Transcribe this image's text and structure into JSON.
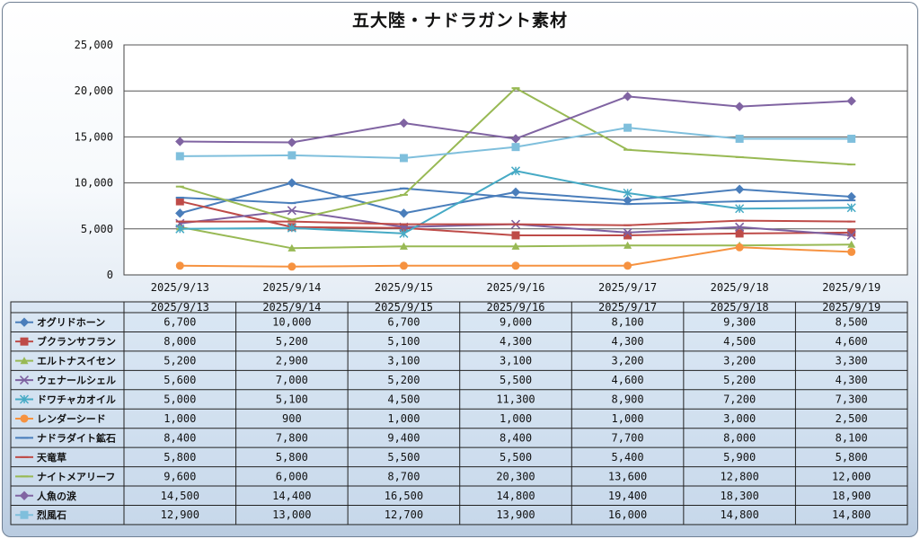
{
  "chart_data": {
    "type": "line",
    "title": "五大陸・ナドラガント素材",
    "x": [
      "2025/9/13",
      "2025/9/14",
      "2025/9/15",
      "2025/9/16",
      "2025/9/17",
      "2025/9/18",
      "2025/9/19"
    ],
    "ylim": [
      0,
      25000
    ],
    "yticks": [
      "0",
      "5,000",
      "10,000",
      "15,000",
      "20,000",
      "25,000"
    ],
    "grid": true,
    "legend": "data-table-below",
    "series": [
      {
        "name": "オグリドホーン",
        "color": "#4a7ebb",
        "marker": "diamond",
        "values": [
          6700,
          10000,
          6700,
          9000,
          8100,
          9300,
          8500
        ],
        "labels": [
          "6,700",
          "10,000",
          "6,700",
          "9,000",
          "8,100",
          "9,300",
          "8,500"
        ]
      },
      {
        "name": "ブクランサフラン",
        "color": "#be4b48",
        "marker": "square",
        "values": [
          8000,
          5200,
          5100,
          4300,
          4300,
          4500,
          4600
        ],
        "labels": [
          "8,000",
          "5,200",
          "5,100",
          "4,300",
          "4,300",
          "4,500",
          "4,600"
        ]
      },
      {
        "name": "エルトナスイセン",
        "color": "#98b954",
        "marker": "triangle",
        "values": [
          5200,
          2900,
          3100,
          3100,
          3200,
          3200,
          3300
        ],
        "labels": [
          "5,200",
          "2,900",
          "3,100",
          "3,100",
          "3,200",
          "3,200",
          "3,300"
        ]
      },
      {
        "name": "ウェナールシェル",
        "color": "#7d60a0",
        "marker": "x",
        "values": [
          5600,
          7000,
          5200,
          5500,
          4600,
          5200,
          4300
        ],
        "labels": [
          "5,600",
          "7,000",
          "5,200",
          "5,500",
          "4,600",
          "5,200",
          "4,300"
        ]
      },
      {
        "name": "ドワチャカオイル",
        "color": "#46aac5",
        "marker": "star",
        "values": [
          5000,
          5100,
          4500,
          11300,
          8900,
          7200,
          7300
        ],
        "labels": [
          "5,000",
          "5,100",
          "4,500",
          "11,300",
          "8,900",
          "7,200",
          "7,300"
        ]
      },
      {
        "name": "レンダーシード",
        "color": "#f69240",
        "marker": "circle",
        "values": [
          1000,
          900,
          1000,
          1000,
          1000,
          3000,
          2500
        ],
        "labels": [
          "1,000",
          "900",
          "1,000",
          "1,000",
          "1,000",
          "3,000",
          "2,500"
        ]
      },
      {
        "name": "ナドラダイト鉱石",
        "color": "#4a7ebb",
        "marker": "dash",
        "values": [
          8400,
          7800,
          9400,
          8400,
          7700,
          8000,
          8100
        ],
        "labels": [
          "8,400",
          "7,800",
          "9,400",
          "8,400",
          "7,700",
          "8,000",
          "8,100"
        ]
      },
      {
        "name": "天竜草",
        "color": "#be4b48",
        "marker": "dash",
        "values": [
          5800,
          5800,
          5500,
          5500,
          5400,
          5900,
          5800
        ],
        "labels": [
          "5,800",
          "5,800",
          "5,500",
          "5,500",
          "5,400",
          "5,900",
          "5,800"
        ]
      },
      {
        "name": "ナイトメアリーフ",
        "color": "#98b954",
        "marker": "dash",
        "values": [
          9600,
          6000,
          8700,
          20300,
          13600,
          12800,
          12000
        ],
        "labels": [
          "9,600",
          "6,000",
          "8,700",
          "20,300",
          "13,600",
          "12,800",
          "12,000"
        ]
      },
      {
        "name": "人魚の涙",
        "color": "#8064a2",
        "marker": "diamond",
        "values": [
          14500,
          14400,
          16500,
          14800,
          19400,
          18300,
          18900
        ],
        "labels": [
          "14,500",
          "14,400",
          "16,500",
          "14,800",
          "19,400",
          "18,300",
          "18,900"
        ]
      },
      {
        "name": "烈風石",
        "color": "#7fbfdc",
        "marker": "square",
        "values": [
          12900,
          13000,
          12700,
          13900,
          16000,
          14800,
          14800
        ],
        "labels": [
          "12,900",
          "13,000",
          "12,700",
          "13,900",
          "16,000",
          "14,800",
          "14,800"
        ]
      }
    ]
  }
}
